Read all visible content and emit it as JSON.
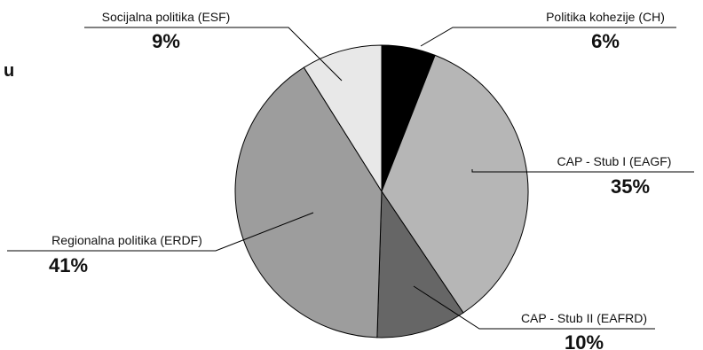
{
  "chart_data": {
    "type": "pie",
    "title": "",
    "slices": [
      {
        "label": "Politika kohezije (CH)",
        "value": 6,
        "value_label": "6%",
        "color": "#000000"
      },
      {
        "label": "CAP - Stub I (EAGF)",
        "value": 35,
        "value_label": "35%",
        "color": "#b6b6b6"
      },
      {
        "label": "CAP - Stub II (EAFRD)",
        "value": 10,
        "value_label": "10%",
        "color": "#666666"
      },
      {
        "label": "Regionalna politika (ERDF)",
        "value": 41,
        "value_label": "41%",
        "color": "#9d9d9d"
      },
      {
        "label": "Socijalna politika (ESF)",
        "value": 9,
        "value_label": "9%",
        "color": "#e8e8e8"
      }
    ],
    "stroke_color": "#000000",
    "start_angle": "top, clockwise",
    "legend": "none",
    "edge_text": "u"
  }
}
